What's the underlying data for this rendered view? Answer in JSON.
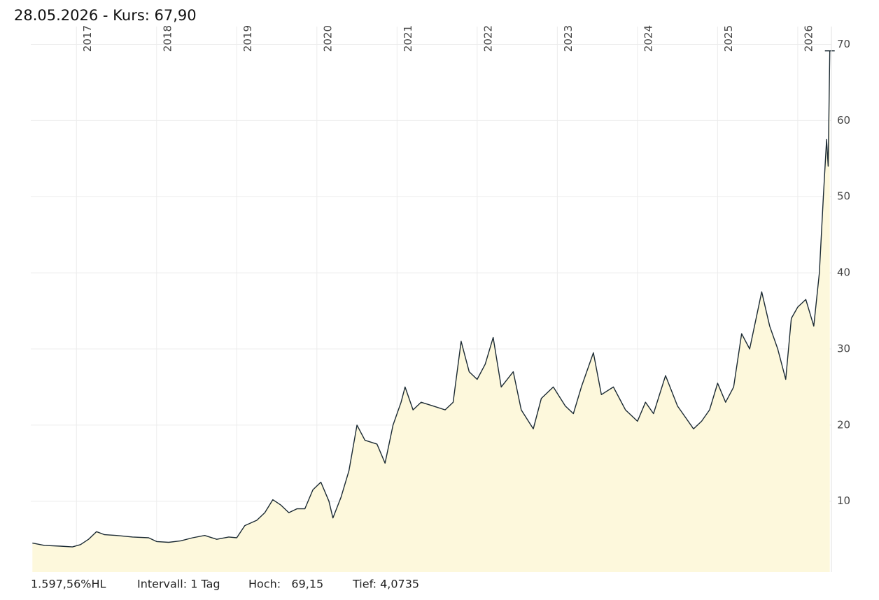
{
  "chart_data": {
    "type": "area",
    "title": "28.05.2026  - Kurs: 67,90",
    "footer": [
      "1.597,56%HL",
      "Intervall: 1 Tag",
      "Hoch:   69,15",
      "Tief: 4,0735"
    ],
    "x": [
      2016.45,
      2016.6,
      2016.8,
      2016.95,
      2017.05,
      2017.15,
      2017.25,
      2017.35,
      2017.5,
      2017.7,
      2017.9,
      2018.0,
      2018.15,
      2018.3,
      2018.45,
      2018.6,
      2018.75,
      2018.9,
      2019.0,
      2019.1,
      2019.25,
      2019.35,
      2019.45,
      2019.55,
      2019.65,
      2019.75,
      2019.85,
      2019.95,
      2020.05,
      2020.15,
      2020.2,
      2020.3,
      2020.4,
      2020.5,
      2020.6,
      2020.75,
      2020.85,
      2020.95,
      2021.05,
      2021.1,
      2021.2,
      2021.3,
      2021.45,
      2021.6,
      2021.7,
      2021.8,
      2021.9,
      2022.0,
      2022.1,
      2022.2,
      2022.3,
      2022.45,
      2022.55,
      2022.7,
      2022.8,
      2022.95,
      2023.1,
      2023.2,
      2023.3,
      2023.45,
      2023.55,
      2023.7,
      2023.85,
      2024.0,
      2024.1,
      2024.2,
      2024.35,
      2024.5,
      2024.6,
      2024.7,
      2024.8,
      2024.9,
      2025.0,
      2025.1,
      2025.2,
      2025.3,
      2025.4,
      2025.55,
      2025.65,
      2025.75,
      2025.85,
      2025.92,
      2026.0,
      2026.1,
      2026.2,
      2026.27,
      2026.32,
      2026.36,
      2026.38,
      2026.4
    ],
    "values": [
      4.5,
      4.2,
      4.1,
      4.0,
      4.3,
      5.0,
      6.0,
      5.6,
      5.5,
      5.3,
      5.2,
      4.7,
      4.6,
      4.8,
      5.2,
      5.5,
      5.0,
      5.3,
      5.2,
      6.8,
      7.5,
      8.5,
      10.2,
      9.5,
      8.5,
      9.0,
      9.0,
      11.5,
      12.5,
      10.0,
      7.8,
      10.5,
      14.0,
      20.0,
      18.0,
      17.5,
      15.0,
      20.0,
      23.0,
      25.0,
      22.0,
      23.0,
      22.5,
      22.0,
      23.0,
      31.0,
      27.0,
      26.0,
      28.0,
      31.5,
      25.0,
      27.0,
      22.0,
      19.5,
      23.5,
      25.0,
      22.5,
      21.5,
      25.0,
      29.5,
      24.0,
      25.0,
      22.0,
      20.5,
      23.0,
      21.5,
      26.5,
      22.5,
      21.0,
      19.5,
      20.5,
      22.0,
      25.5,
      23.0,
      25.0,
      32.0,
      30.0,
      37.5,
      33.0,
      30.0,
      26.0,
      34.0,
      35.5,
      36.5,
      33.0,
      40.0,
      50.0,
      57.5,
      54.0,
      69.15
    ],
    "color": "#1b2a33",
    "fill": "#fdf8dc",
    "xlim": [
      2016.43,
      2026.42
    ],
    "xticks": [
      2017,
      2018,
      2019,
      2020,
      2021,
      2022,
      2023,
      2024,
      2025,
      2026
    ],
    "ylim": [
      0.7,
      70.5
    ],
    "yticks": [
      10,
      20,
      30,
      40,
      50,
      60,
      70
    ],
    "grid": true
  }
}
